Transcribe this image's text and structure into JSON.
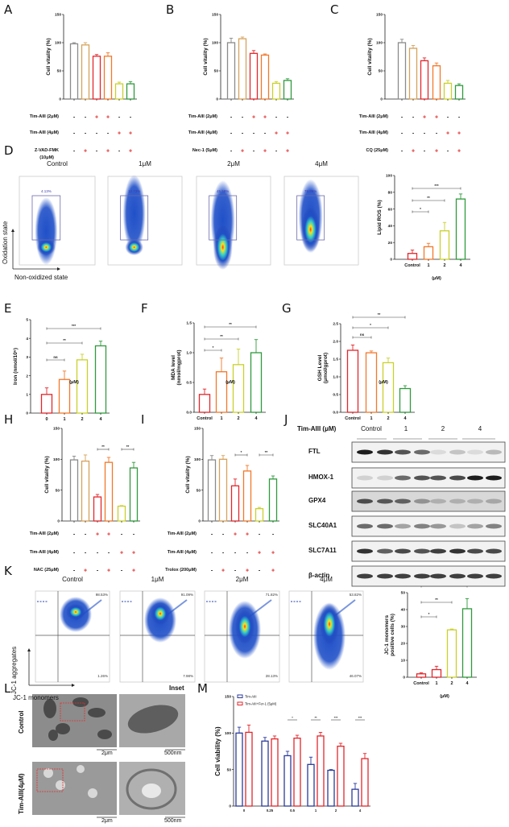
{
  "panels": {
    "A": "A",
    "B": "B",
    "C": "C",
    "D": "D",
    "E": "E",
    "F": "F",
    "G": "G",
    "H": "H",
    "I": "I",
    "J": "J",
    "K": "K",
    "L": "L",
    "M": "M"
  },
  "colors": {
    "control": "#8a8a8a",
    "tan": "#d6a25a",
    "red": "#e3262b",
    "orange": "#f2782a",
    "yellow": "#c9d12c",
    "green": "#2f9a3c",
    "blue": "#2b3b9a",
    "gate": "#6a6ab0"
  },
  "treatments": {
    "A": [
      {
        "label": "Tim-AIII (2μM)",
        "symbols": [
          "-",
          "-",
          "+",
          "+",
          "-",
          "-"
        ]
      },
      {
        "label": "Tim-AIII (4μM)",
        "symbols": [
          "-",
          "-",
          "-",
          "-",
          "+",
          "+"
        ]
      },
      {
        "label": "Z-VAD-FMK",
        "label2": "(10μM)",
        "symbols": [
          "-",
          "+",
          "-",
          "+",
          "-",
          "+"
        ]
      }
    ],
    "B": [
      {
        "label": "Tim-AIII (2μM)",
        "symbols": [
          "-",
          "-",
          "+",
          "+",
          "-",
          "-"
        ]
      },
      {
        "label": "Tim-AIII (4μM)",
        "symbols": [
          "-",
          "-",
          "-",
          "-",
          "+",
          "+"
        ]
      },
      {
        "label": "Nec-1 (5μM)",
        "symbols": [
          "-",
          "+",
          "-",
          "+",
          "-",
          "+"
        ]
      }
    ],
    "C": [
      {
        "label": "Tim-AIII (2μM)",
        "symbols": [
          "-",
          "-",
          "+",
          "+",
          "-",
          "-"
        ]
      },
      {
        "label": "Tim-AIII (4μM)",
        "symbols": [
          "-",
          "-",
          "-",
          "-",
          "+",
          "+"
        ]
      },
      {
        "label": "CQ (25μM)",
        "symbols": [
          "-",
          "+",
          "-",
          "+",
          "-",
          "+"
        ]
      }
    ],
    "H": [
      {
        "label": "Tim-AIII (2μM)",
        "symbols": [
          "-",
          "-",
          "+",
          "+",
          "-",
          "-"
        ]
      },
      {
        "label": "Tim-AIII (4μM)",
        "symbols": [
          "-",
          "-",
          "-",
          "-",
          "+",
          "+"
        ]
      },
      {
        "label": "NAC (25μM)",
        "symbols": [
          "-",
          "+",
          "-",
          "+",
          "-",
          "+"
        ]
      }
    ],
    "I": [
      {
        "label": "Tim-AIII (2μM)",
        "symbols": [
          "-",
          "-",
          "+",
          "+",
          "-",
          "-"
        ]
      },
      {
        "label": "Tim-AIII (4μM)",
        "symbols": [
          "-",
          "-",
          "-",
          "-",
          "+",
          "+"
        ]
      },
      {
        "label": "Trolox (200μM)",
        "symbols": [
          "-",
          "+",
          "-",
          "+",
          "-",
          "+"
        ]
      }
    ]
  },
  "flow_D": {
    "titles": [
      "Control",
      "1μM",
      "2μM",
      "4μM"
    ],
    "percents": [
      "4.13%",
      "12.73%",
      "45.58%",
      "78.86%"
    ],
    "y_axis": "Oxidation state",
    "x_axis": "Non-oxidized state"
  },
  "flow_K": {
    "titles": [
      "Control",
      "1μM",
      "2μM",
      "4μM"
    ],
    "upper_percents": [
      "98.53%",
      "91.09%",
      "71.82%",
      "53.82%"
    ],
    "lower_percents": [
      "1.26%",
      "7.98%",
      "28.13%",
      "46.07%"
    ],
    "y_axis": "JC-1 aggregates",
    "x_axis": "JC-1 monomers"
  },
  "western_J": {
    "header": "Tim-AIII (μM)",
    "groups": [
      "Control",
      "1",
      "2",
      "4"
    ],
    "proteins": [
      "FTL",
      "HMOX-1",
      "GPX4",
      "SLC40A1",
      "SLC7A11",
      "β-actin"
    ]
  },
  "tem_L": {
    "inset_title": "Inset",
    "rows": [
      "Control",
      "Tim-AIII(4μM)"
    ],
    "scale_main": "2μm",
    "scale_inset": "500nm"
  },
  "chart_data": [
    {
      "id": "A",
      "type": "bar",
      "ylabel": "Cell vitality (%)",
      "ylim": [
        0,
        150
      ],
      "yticks": [
        "0",
        "50",
        "100",
        "150"
      ],
      "values": [
        98,
        96,
        76,
        76,
        27,
        27
      ],
      "errors": [
        2,
        4,
        3,
        6,
        3,
        4
      ],
      "colors": [
        "#8a8a8a",
        "#d6a25a",
        "#e3262b",
        "#f2782a",
        "#c9d12c",
        "#2f9a3c"
      ],
      "significance": []
    },
    {
      "id": "B",
      "type": "bar",
      "ylabel": "Cell vitality (%)",
      "ylim": [
        0,
        150
      ],
      "yticks": [
        "0",
        "50",
        "100",
        "150"
      ],
      "values": [
        100,
        107,
        81,
        78,
        28,
        33
      ],
      "errors": [
        8,
        3,
        5,
        2,
        3,
        3
      ],
      "colors": [
        "#8a8a8a",
        "#d6a25a",
        "#e3262b",
        "#f2782a",
        "#c9d12c",
        "#2f9a3c"
      ],
      "significance": []
    },
    {
      "id": "C",
      "type": "bar",
      "ylabel": "Cell vitality (%)",
      "ylim": [
        0,
        150
      ],
      "yticks": [
        "0",
        "50",
        "100",
        "150"
      ],
      "values": [
        100,
        90,
        68,
        59,
        28,
        24
      ],
      "errors": [
        6,
        5,
        5,
        5,
        5,
        3
      ],
      "colors": [
        "#8a8a8a",
        "#d6a25a",
        "#e3262b",
        "#f2782a",
        "#c9d12c",
        "#2f9a3c"
      ],
      "significance": []
    },
    {
      "id": "D",
      "type": "bar",
      "ylabel": "Lipid ROS (%)",
      "ylim": [
        0,
        100
      ],
      "yticks": [
        "0",
        "20",
        "40",
        "60",
        "80",
        "100"
      ],
      "xlabel": "(μM)",
      "categories": [
        "Control",
        "1",
        "2",
        "4"
      ],
      "values": [
        7,
        15,
        34,
        72
      ],
      "errors": [
        4,
        4,
        10,
        6
      ],
      "colors": [
        "#e3262b",
        "#f2782a",
        "#c9d12c",
        "#2f9a3c"
      ],
      "significance": [
        {
          "from": 0,
          "to": 1,
          "label": "*"
        },
        {
          "from": 0,
          "to": 2,
          "label": "**"
        },
        {
          "from": 0,
          "to": 3,
          "label": "***"
        }
      ]
    },
    {
      "id": "E",
      "type": "bar",
      "ylabel": "Iron (nmol/10⁶)",
      "ylim": [
        0,
        5
      ],
      "yticks": [
        "0",
        "1",
        "2",
        "3",
        "4",
        "5"
      ],
      "xlabel": "(μM)",
      "categories": [
        "0",
        "1",
        "2",
        "4"
      ],
      "values": [
        1.0,
        1.8,
        2.85,
        3.6
      ],
      "errors": [
        0.35,
        0.45,
        0.3,
        0.25
      ],
      "colors": [
        "#e3262b",
        "#f2782a",
        "#c9d12c",
        "#2f9a3c"
      ],
      "significance": [
        {
          "from": 0,
          "to": 1,
          "label": "ns"
        },
        {
          "from": 0,
          "to": 2,
          "label": "**"
        },
        {
          "from": 0,
          "to": 3,
          "label": "***"
        }
      ]
    },
    {
      "id": "F",
      "type": "bar",
      "ylabel": "MDA level",
      "ylabel2": "(nmol/mgprot)",
      "ylim": [
        0,
        1.5
      ],
      "yticks": [
        "0.0",
        "0.5",
        "1.0",
        "1.5"
      ],
      "xlabel": "(μM)",
      "categories": [
        "Control",
        "1",
        "2",
        "4"
      ],
      "values": [
        0.3,
        0.68,
        0.8,
        1.0
      ],
      "errors": [
        0.09,
        0.23,
        0.26,
        0.22
      ],
      "colors": [
        "#e3262b",
        "#f2782a",
        "#c9d12c",
        "#2f9a3c"
      ],
      "significance": [
        {
          "from": 0,
          "to": 1,
          "label": "*"
        },
        {
          "from": 0,
          "to": 2,
          "label": "**"
        },
        {
          "from": 0,
          "to": 3,
          "label": "**"
        }
      ]
    },
    {
      "id": "G",
      "type": "bar",
      "ylabel": "GSH Level",
      "ylabel2": "(μmol/gprot)",
      "ylim": [
        0,
        2.5
      ],
      "yticks": [
        "0.0",
        "0.5",
        "1.0",
        "1.5",
        "2.0",
        "2.5"
      ],
      "xlabel": "(μM)",
      "categories": [
        "Control",
        "1",
        "2",
        "4"
      ],
      "values": [
        1.75,
        1.68,
        1.4,
        0.67
      ],
      "errors": [
        0.15,
        0.05,
        0.13,
        0.08
      ],
      "colors": [
        "#e3262b",
        "#f2782a",
        "#c9d12c",
        "#2f9a3c"
      ],
      "significance": [
        {
          "from": 0,
          "to": 1,
          "label": "ns"
        },
        {
          "from": 0,
          "to": 2,
          "label": "*"
        },
        {
          "from": 0,
          "to": 3,
          "label": "**"
        }
      ]
    },
    {
      "id": "H",
      "type": "bar",
      "ylabel": "Cell vitality (%)",
      "ylim": [
        0,
        150
      ],
      "yticks": [
        "0",
        "50",
        "100",
        "150"
      ],
      "values": [
        99,
        97,
        39,
        95,
        24,
        86
      ],
      "errors": [
        6,
        10,
        4,
        8,
        1,
        9
      ],
      "colors": [
        "#8a8a8a",
        "#d6a25a",
        "#e3262b",
        "#f2782a",
        "#c9d12c",
        "#2f9a3c"
      ],
      "significance": [
        {
          "from": 2,
          "to": 3,
          "label": "**"
        },
        {
          "from": 4,
          "to": 5,
          "label": "**"
        }
      ]
    },
    {
      "id": "I",
      "type": "bar",
      "ylabel": "Cell vitality (%)",
      "ylim": [
        0,
        150
      ],
      "yticks": [
        "0",
        "50",
        "100",
        "150"
      ],
      "values": [
        99,
        100,
        57,
        81,
        20,
        68
      ],
      "errors": [
        7,
        6,
        11,
        9,
        2,
        5
      ],
      "colors": [
        "#8a8a8a",
        "#d6a25a",
        "#e3262b",
        "#f2782a",
        "#c9d12c",
        "#2f9a3c"
      ],
      "significance": [
        {
          "from": 2,
          "to": 3,
          "label": "*"
        },
        {
          "from": 4,
          "to": 5,
          "label": "**"
        }
      ]
    },
    {
      "id": "K",
      "type": "bar",
      "ylabel": "JC-1 monomers",
      "ylabel2": "positive cells (%)",
      "ylim": [
        0,
        50
      ],
      "yticks": [
        "0",
        "10",
        "20",
        "30",
        "40",
        "50"
      ],
      "xlabel": "(μM)",
      "categories": [
        "Control",
        "1",
        "2",
        "4"
      ],
      "values": [
        2,
        4.5,
        28,
        40.5
      ],
      "errors": [
        0.6,
        2,
        0.5,
        6
      ],
      "colors": [
        "#e3262b",
        "#e3262b",
        "#c9d12c",
        "#2f9a3c"
      ],
      "significance": [
        {
          "from": 0,
          "to": 1,
          "label": "*"
        },
        {
          "from": 0,
          "to": 2,
          "label": "**"
        },
        {
          "from": 0,
          "to": 3,
          "label": "***"
        }
      ]
    },
    {
      "id": "M",
      "type": "bar",
      "ylabel": "Cell viability (%)",
      "ylim": [
        0,
        150
      ],
      "yticks": [
        "0",
        "50",
        "100",
        "150"
      ],
      "categories": [
        "0",
        "0.25",
        "0.5",
        "1",
        "2",
        "4"
      ],
      "series": [
        {
          "name": "Tim-AIII",
          "color": "#2b3b9a",
          "values": [
            100,
            89,
            69,
            57,
            49,
            23
          ],
          "errors": [
            8,
            5,
            6,
            10,
            1,
            8
          ]
        },
        {
          "name": "Tim-AIII+Fer-1 (5μM)",
          "color": "#e3262b",
          "values": [
            101,
            92,
            93,
            96,
            82,
            65
          ],
          "errors": [
            10,
            4,
            4,
            5,
            4,
            7
          ]
        }
      ],
      "legend": "top-left",
      "significance": [
        {
          "group": 2,
          "label": "*"
        },
        {
          "group": 3,
          "label": "**"
        },
        {
          "group": 4,
          "label": "***"
        },
        {
          "group": 5,
          "label": "***"
        }
      ]
    }
  ]
}
